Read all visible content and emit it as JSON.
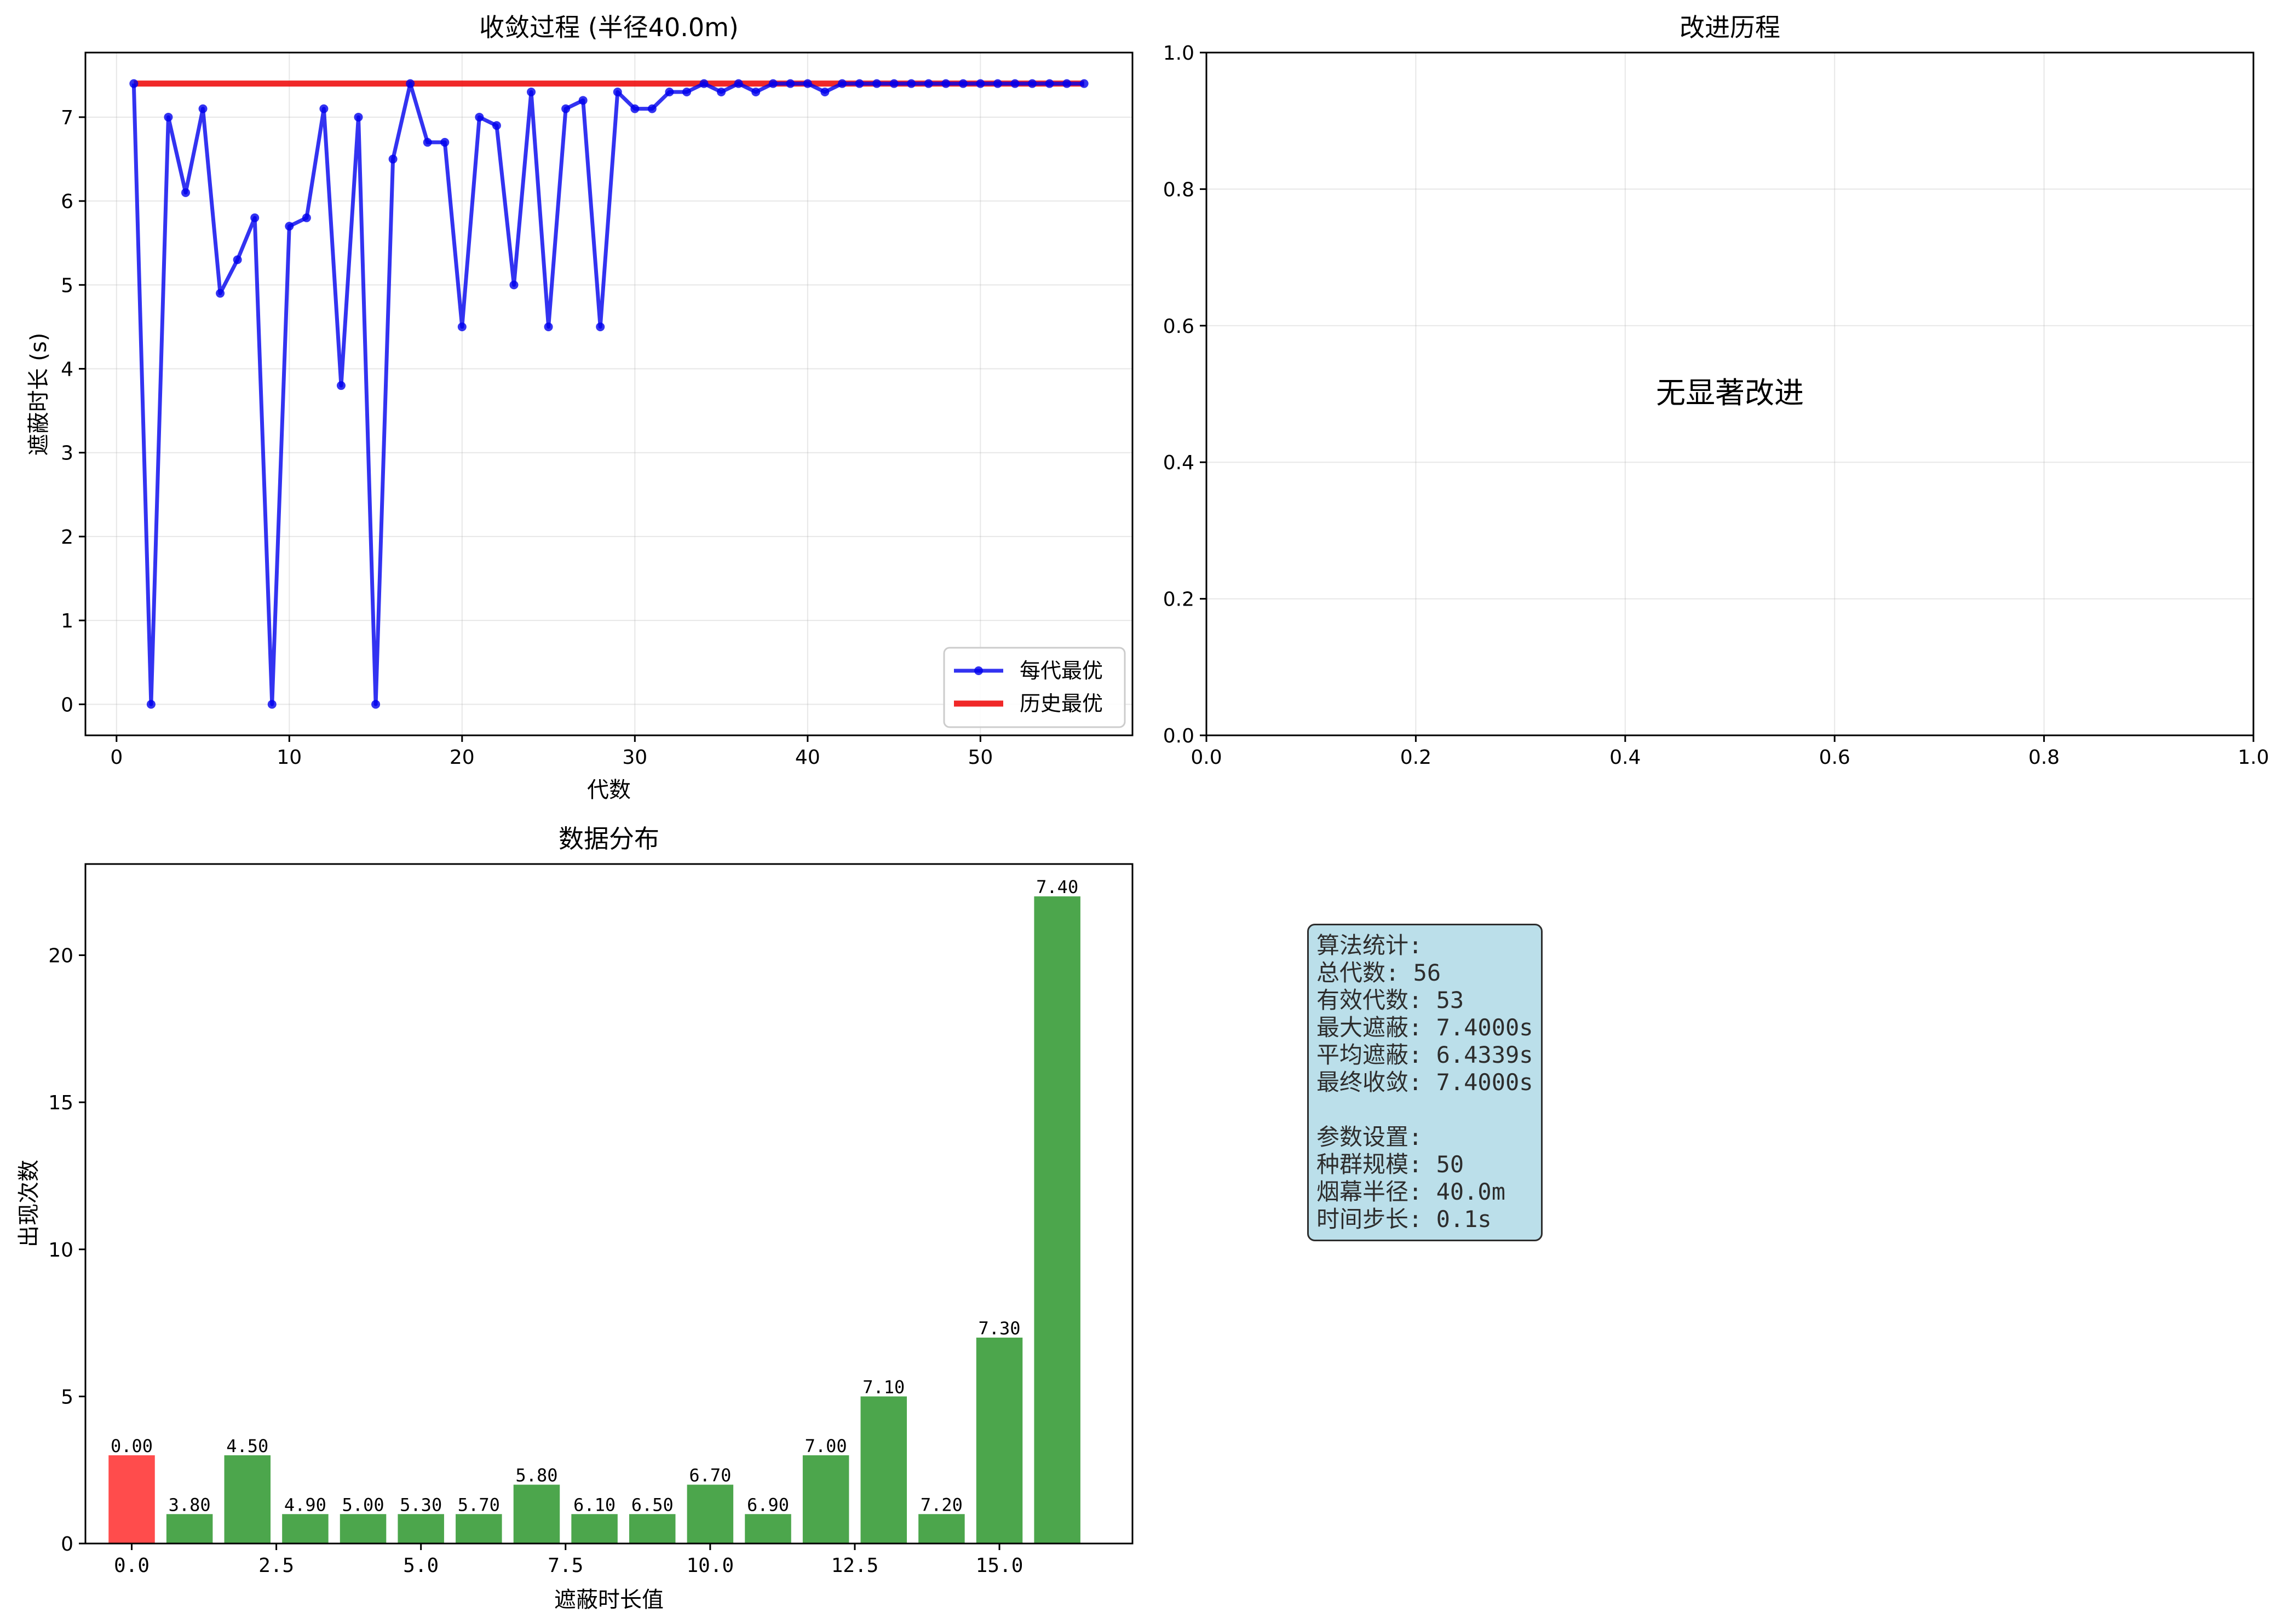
{
  "chart_data": [
    {
      "type": "line",
      "title": "收敛过程 (半径40.0m)",
      "xlabel": "代数",
      "ylabel": "遮蔽时长 (s)",
      "xlim": [
        -1.8,
        58.8
      ],
      "ylim": [
        -0.37,
        7.77
      ],
      "xticks": [
        0,
        10,
        20,
        30,
        40,
        50
      ],
      "yticks": [
        0,
        1,
        2,
        3,
        4,
        5,
        6,
        7
      ],
      "grid": true,
      "legend_position": "lower right",
      "series": [
        {
          "name": "每代最优",
          "color": "#0000ee",
          "x": [
            1,
            2,
            3,
            4,
            5,
            6,
            7,
            8,
            9,
            10,
            11,
            12,
            13,
            14,
            15,
            16,
            17,
            18,
            19,
            20,
            21,
            22,
            23,
            24,
            25,
            26,
            27,
            28,
            29,
            30,
            31,
            32,
            33,
            34,
            35,
            36,
            37,
            38,
            39,
            40,
            41,
            42,
            43,
            44,
            45,
            46,
            47,
            48,
            49,
            50,
            51,
            52,
            53,
            54,
            55,
            56
          ],
          "y": [
            7.4,
            0,
            7.0,
            6.1,
            7.1,
            4.9,
            5.3,
            5.8,
            0,
            5.7,
            5.8,
            7.1,
            3.8,
            7.0,
            0,
            6.5,
            7.4,
            6.7,
            6.7,
            4.5,
            7.0,
            6.9,
            5.0,
            7.3,
            4.5,
            7.1,
            7.2,
            4.5,
            7.3,
            7.1,
            7.1,
            7.3,
            7.3,
            7.4,
            7.3,
            7.4,
            7.3,
            7.4,
            7.4,
            7.4,
            7.3,
            7.4,
            7.4,
            7.4,
            7.4,
            7.4,
            7.4,
            7.4,
            7.4,
            7.4,
            7.4,
            7.4,
            7.4,
            7.4,
            7.4,
            7.4
          ]
        },
        {
          "name": "历史最优",
          "color": "#ee1111",
          "x": [
            1,
            56
          ],
          "y": [
            7.4,
            7.4
          ]
        }
      ]
    },
    {
      "type": "line",
      "title": "改进历程",
      "xlim": [
        0,
        1
      ],
      "ylim": [
        0,
        1
      ],
      "xticks": [
        0.0,
        0.2,
        0.4,
        0.6,
        0.8,
        1.0
      ],
      "yticks": [
        0.0,
        0.2,
        0.4,
        0.6,
        0.8,
        1.0
      ],
      "grid": true,
      "annotation": "无显著改进",
      "series": []
    },
    {
      "type": "bar",
      "title": "数据分布",
      "xlabel": "遮蔽时长值",
      "ylabel": "出现次数",
      "xlim": [
        -0.8,
        17.3
      ],
      "ylim": [
        0,
        23.1
      ],
      "xticks": [
        0.0,
        2.5,
        5.0,
        7.5,
        10.0,
        12.5,
        15.0
      ],
      "yticks": [
        0,
        5,
        10,
        15,
        20
      ],
      "grid": false,
      "categories": [
        "0.00",
        "3.80",
        "4.50",
        "4.90",
        "5.00",
        "5.30",
        "5.70",
        "5.80",
        "6.10",
        "6.50",
        "6.70",
        "6.90",
        "7.00",
        "7.10",
        "7.20",
        "7.30",
        "7.40"
      ],
      "values": [
        3,
        1,
        3,
        1,
        1,
        1,
        1,
        2,
        1,
        1,
        2,
        1,
        3,
        5,
        1,
        7,
        22
      ],
      "colors": {
        "zero": "#ff4c4c",
        "other": "#4ca64c"
      }
    }
  ],
  "stats": {
    "lines": [
      "算法统计:",
      "总代数: 56",
      "有效代数: 53",
      "最大遮蔽: 7.4000s",
      "平均遮蔽: 6.4339s",
      "最终收敛: 7.4000s",
      "",
      "参数设置:",
      "种群规模: 50",
      "烟幕半径: 40.0m",
      "时间步长: 0.1s"
    ]
  }
}
